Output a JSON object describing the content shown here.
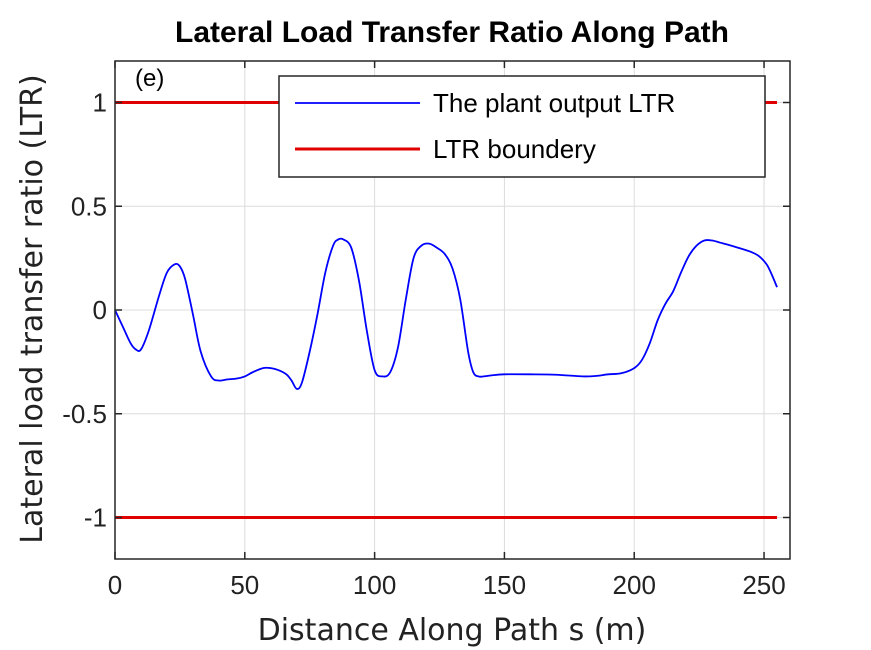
{
  "chart_data": {
    "type": "line",
    "title": "Lateral Load Transfer Ratio Along Path",
    "xlabel": "Distance Along Path s (m)",
    "ylabel": "Lateral load transfer ratio (LTR)",
    "annotation": "(e)",
    "xlim": [
      0,
      260
    ],
    "ylim": [
      -1.2,
      1.2
    ],
    "xticks": [
      0,
      50,
      100,
      150,
      200,
      250
    ],
    "xtick_labels": [
      "0",
      "50",
      "100",
      "150",
      "200",
      "250"
    ],
    "yticks": [
      1,
      0.5,
      0,
      -0.5,
      -1
    ],
    "ytick_labels": [
      "1",
      "0.5",
      "0",
      "-0.5",
      "-1"
    ],
    "grid": true,
    "legend_position": "top-right",
    "series": [
      {
        "name": "The plant output LTR",
        "color": "#0000ff",
        "x": [
          0,
          3,
          6,
          8,
          10,
          13,
          17,
          20,
          23,
          25,
          27,
          30,
          33,
          37,
          40,
          43,
          47,
          50,
          53,
          57,
          60,
          63,
          66,
          68,
          70,
          72,
          75,
          78,
          81,
          84,
          86,
          88,
          91,
          94,
          97,
          100,
          103,
          106,
          109,
          112,
          115,
          118,
          121,
          124,
          127,
          130,
          133,
          136,
          138,
          140,
          142,
          145,
          150,
          160,
          170,
          180,
          185,
          190,
          195,
          200,
          203,
          206,
          209,
          212,
          215,
          218,
          221,
          224,
          227,
          230,
          233,
          236,
          240,
          245,
          248,
          251,
          253,
          255
        ],
        "y": [
          0.0,
          -0.08,
          -0.16,
          -0.19,
          -0.19,
          -0.1,
          0.07,
          0.18,
          0.22,
          0.21,
          0.15,
          -0.02,
          -0.2,
          -0.32,
          -0.34,
          -0.335,
          -0.33,
          -0.32,
          -0.3,
          -0.28,
          -0.28,
          -0.29,
          -0.31,
          -0.34,
          -0.38,
          -0.35,
          -0.2,
          -0.02,
          0.18,
          0.31,
          0.34,
          0.34,
          0.3,
          0.14,
          -0.1,
          -0.29,
          -0.32,
          -0.3,
          -0.18,
          0.05,
          0.25,
          0.31,
          0.32,
          0.3,
          0.27,
          0.2,
          0.05,
          -0.2,
          -0.3,
          -0.32,
          -0.32,
          -0.315,
          -0.31,
          -0.31,
          -0.312,
          -0.32,
          -0.318,
          -0.31,
          -0.305,
          -0.28,
          -0.24,
          -0.16,
          -0.05,
          0.03,
          0.09,
          0.18,
          0.26,
          0.31,
          0.335,
          0.335,
          0.325,
          0.315,
          0.3,
          0.28,
          0.26,
          0.22,
          0.17,
          0.11
        ]
      },
      {
        "name": "LTR boundery",
        "color": "#e00000",
        "segments": [
          {
            "x": [
              0,
              255
            ],
            "y": [
              1,
              1
            ]
          },
          {
            "x": [
              0,
              255
            ],
            "y": [
              -1,
              -1
            ]
          }
        ]
      }
    ]
  }
}
